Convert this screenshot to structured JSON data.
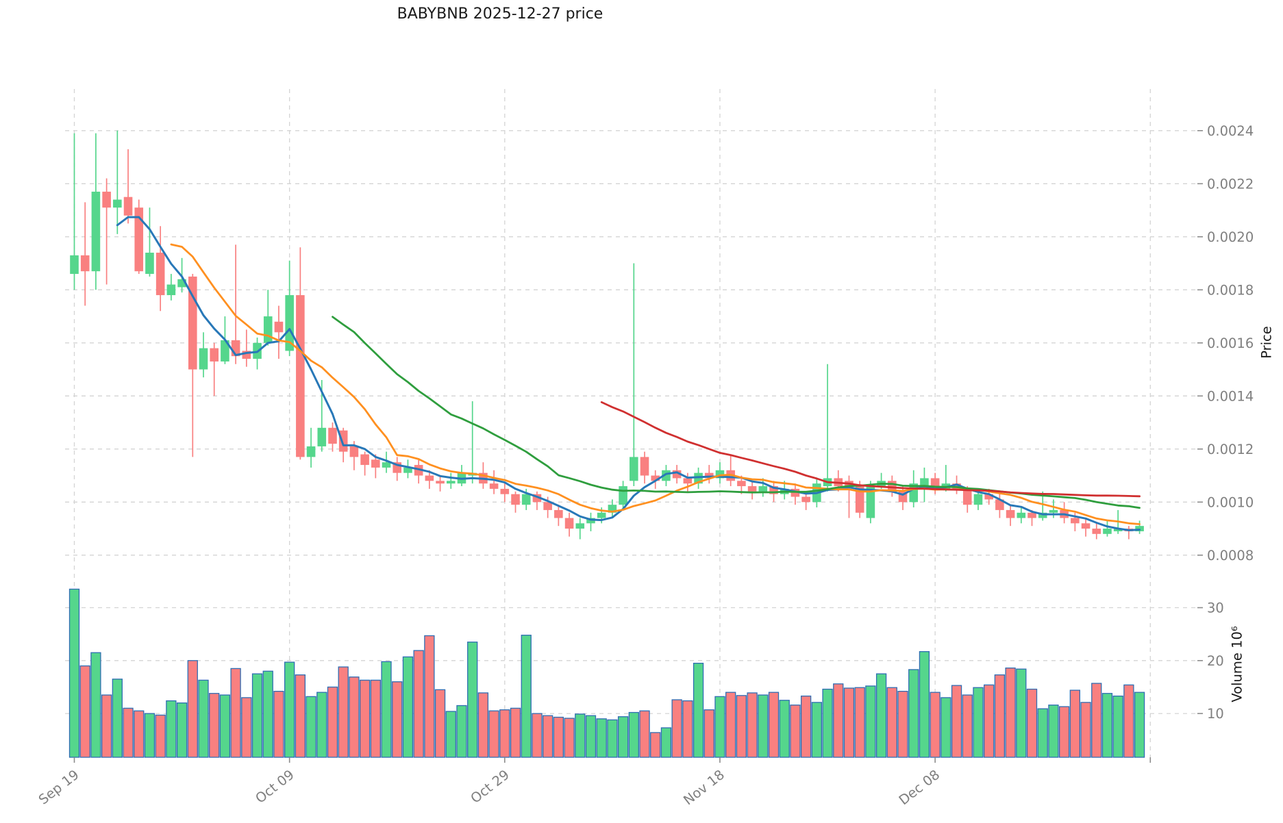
{
  "title": "BABYBNB  2025-12-27  price",
  "chart_data": {
    "type": "candlestick",
    "symbol": "BABYBNB",
    "as_of_date": "2025-12-27",
    "grid": true,
    "legend_position": "none",
    "price_axis": {
      "label": "Price",
      "side": "right",
      "ticks": [
        0.0008,
        0.001,
        0.0012,
        0.0014,
        0.0016,
        0.0018,
        0.002,
        0.0022,
        0.0024
      ],
      "range": [
        0.00077,
        0.00256
      ]
    },
    "volume_axis": {
      "label": "Volume  10⁶",
      "side": "right",
      "unit_multiplier": "10⁶",
      "ticks": [
        10,
        20,
        30
      ],
      "range": [
        1.7,
        36.1
      ]
    },
    "x_axis": {
      "tick_labels": [
        "Sep 19",
        "Oct 09",
        "Oct 29",
        "Nov 18",
        "Dec 08"
      ],
      "tick_day_indices": [
        0,
        20,
        40,
        60,
        80
      ],
      "grid_day_indices": [
        0,
        20,
        40,
        60,
        80,
        100
      ],
      "label_rotation_deg": 38
    },
    "dates": [
      "09-19",
      "09-20",
      "09-21",
      "09-22",
      "09-23",
      "09-24",
      "09-25",
      "09-26",
      "09-27",
      "09-28",
      "09-29",
      "09-30",
      "10-01",
      "10-02",
      "10-03",
      "10-04",
      "10-05",
      "10-06",
      "10-07",
      "10-08",
      "10-09",
      "10-10",
      "10-11",
      "10-12",
      "10-13",
      "10-14",
      "10-15",
      "10-16",
      "10-17",
      "10-18",
      "10-19",
      "10-20",
      "10-21",
      "10-22",
      "10-23",
      "10-24",
      "10-25",
      "10-26",
      "10-27",
      "10-28",
      "10-29",
      "10-30",
      "10-31",
      "11-01",
      "11-02",
      "11-03",
      "11-04",
      "11-05",
      "11-06",
      "11-07",
      "11-08",
      "11-09",
      "11-10",
      "11-11",
      "11-12",
      "11-13",
      "11-14",
      "11-15",
      "11-16",
      "11-17",
      "11-18",
      "11-19",
      "11-20",
      "11-21",
      "11-22",
      "11-23",
      "11-24",
      "11-25",
      "11-26",
      "11-27",
      "11-28",
      "11-29",
      "11-30",
      "12-01",
      "12-02",
      "12-03",
      "12-04",
      "12-05",
      "12-06",
      "12-07",
      "12-08",
      "12-09",
      "12-10",
      "12-11",
      "12-12",
      "12-13",
      "12-14",
      "12-15",
      "12-16",
      "12-17",
      "12-18",
      "12-19",
      "12-20",
      "12-21",
      "12-22",
      "12-23",
      "12-24",
      "12-25",
      "12-26",
      "12-27"
    ],
    "open": [
      0.00186,
      0.00193,
      0.00187,
      0.00217,
      0.00211,
      0.00215,
      0.00211,
      0.00186,
      0.00194,
      0.00178,
      0.00181,
      0.00185,
      0.0015,
      0.00158,
      0.00153,
      0.00161,
      0.00157,
      0.00154,
      0.0016,
      0.00168,
      0.00157,
      0.00178,
      0.00117,
      0.00121,
      0.00128,
      0.00127,
      0.00121,
      0.00118,
      0.00116,
      0.00113,
      0.00115,
      0.00111,
      0.00114,
      0.0011,
      0.00108,
      0.00107,
      0.00107,
      0.0011,
      0.00111,
      0.00107,
      0.00105,
      0.00103,
      0.00099,
      0.00103,
      0.001,
      0.00097,
      0.00094,
      0.0009,
      0.00092,
      0.00094,
      0.00096,
      0.00099,
      0.00108,
      0.00117,
      0.0011,
      0.00108,
      0.00112,
      0.00109,
      0.00107,
      0.00111,
      0.00109,
      0.00112,
      0.00108,
      0.00106,
      0.00104,
      0.00106,
      0.00103,
      0.00105,
      0.00102,
      0.001,
      0.00106,
      0.00109,
      0.00108,
      0.00106,
      0.00094,
      0.00106,
      0.00108,
      0.00104,
      0.001,
      0.00105,
      0.00109,
      0.00105,
      0.00107,
      0.00105,
      0.00099,
      0.00103,
      0.00101,
      0.00097,
      0.00094,
      0.00096,
      0.00094,
      0.00096,
      0.00097,
      0.00094,
      0.00092,
      0.0009,
      0.00088,
      0.00089,
      0.0009,
      0.00089
    ],
    "high": [
      0.00239,
      0.00213,
      0.00239,
      0.00222,
      0.0024,
      0.00233,
      0.00214,
      0.00211,
      0.00204,
      0.00186,
      0.00192,
      0.00186,
      0.00164,
      0.0016,
      0.0017,
      0.00197,
      0.00165,
      0.00162,
      0.0018,
      0.00174,
      0.00191,
      0.00196,
      0.00128,
      0.00146,
      0.0013,
      0.00128,
      0.00123,
      0.00119,
      0.00118,
      0.00119,
      0.00117,
      0.00116,
      0.00116,
      0.00112,
      0.0011,
      0.00111,
      0.00114,
      0.00138,
      0.00115,
      0.00112,
      0.00107,
      0.00104,
      0.00105,
      0.00104,
      0.00102,
      0.00099,
      0.00096,
      0.00094,
      0.00096,
      0.00098,
      0.00101,
      0.00108,
      0.0019,
      0.00119,
      0.00112,
      0.00114,
      0.00114,
      0.00111,
      0.00113,
      0.00114,
      0.00115,
      0.00118,
      0.0011,
      0.00108,
      0.00109,
      0.00108,
      0.00108,
      0.00107,
      0.00104,
      0.00109,
      0.00152,
      0.00112,
      0.0011,
      0.00108,
      0.00108,
      0.00111,
      0.0011,
      0.00106,
      0.00112,
      0.00113,
      0.00111,
      0.00114,
      0.0011,
      0.00106,
      0.00105,
      0.00105,
      0.00103,
      0.00099,
      0.00098,
      0.00097,
      0.00104,
      0.00101,
      0.001,
      0.00096,
      0.00094,
      0.00092,
      0.00093,
      0.00097,
      0.00091,
      0.00093
    ],
    "low": [
      0.0018,
      0.00174,
      0.0018,
      0.00182,
      0.00201,
      0.00205,
      0.00186,
      0.00185,
      0.00172,
      0.00176,
      0.00179,
      0.00117,
      0.00147,
      0.0014,
      0.00152,
      0.00152,
      0.00151,
      0.0015,
      0.00159,
      0.00154,
      0.00155,
      0.00116,
      0.00113,
      0.00119,
      0.00119,
      0.00115,
      0.00112,
      0.0011,
      0.00109,
      0.00111,
      0.00108,
      0.00109,
      0.00107,
      0.00105,
      0.00104,
      0.00105,
      0.00106,
      0.00107,
      0.00105,
      0.00103,
      0.001,
      0.00096,
      0.00097,
      0.00097,
      0.00094,
      0.00091,
      0.00087,
      0.00086,
      0.00089,
      0.00092,
      0.00094,
      0.00097,
      0.00106,
      0.00107,
      0.00105,
      0.00106,
      0.00107,
      0.00104,
      0.00105,
      0.00107,
      0.00107,
      0.00106,
      0.00103,
      0.00101,
      0.00102,
      0.001,
      0.00101,
      0.00099,
      0.00097,
      0.00098,
      0.00104,
      0.00104,
      0.00094,
      0.00094,
      0.00092,
      0.00105,
      0.00102,
      0.00097,
      0.00098,
      0.001,
      0.00103,
      0.00104,
      0.00103,
      0.00096,
      0.00097,
      0.00099,
      0.00094,
      0.00091,
      0.00092,
      0.00091,
      0.00093,
      0.00094,
      0.00092,
      0.00089,
      0.00087,
      0.00086,
      0.00087,
      0.00088,
      0.00086,
      0.00088
    ],
    "close": [
      0.00193,
      0.00187,
      0.00217,
      0.00211,
      0.00214,
      0.00208,
      0.00187,
      0.00194,
      0.00178,
      0.00182,
      0.00184,
      0.0015,
      0.00158,
      0.00153,
      0.00161,
      0.00155,
      0.00154,
      0.0016,
      0.0017,
      0.00164,
      0.00178,
      0.00117,
      0.00121,
      0.00128,
      0.00122,
      0.00119,
      0.00117,
      0.00114,
      0.00113,
      0.00115,
      0.00111,
      0.00113,
      0.0011,
      0.00108,
      0.00107,
      0.00108,
      0.00111,
      0.00111,
      0.00107,
      0.00105,
      0.00103,
      0.00099,
      0.00103,
      0.001,
      0.00097,
      0.00094,
      0.0009,
      0.00092,
      0.00094,
      0.00096,
      0.00099,
      0.00106,
      0.00117,
      0.0011,
      0.00108,
      0.00112,
      0.00109,
      0.00107,
      0.00111,
      0.00109,
      0.00112,
      0.00108,
      0.00106,
      0.00104,
      0.00106,
      0.00103,
      0.00105,
      0.00102,
      0.001,
      0.00107,
      0.00109,
      0.00106,
      0.00106,
      0.00096,
      0.00106,
      0.00108,
      0.00104,
      0.001,
      0.00107,
      0.00109,
      0.00105,
      0.00107,
      0.00105,
      0.00099,
      0.00103,
      0.00101,
      0.00097,
      0.00094,
      0.00096,
      0.00094,
      0.00096,
      0.00097,
      0.00094,
      0.00092,
      0.0009,
      0.00088,
      0.0009,
      0.0009,
      0.00089,
      0.00091
    ],
    "volume_millions": [
      33.5,
      19,
      21.5,
      13.5,
      16.5,
      11,
      10.5,
      10,
      9.7,
      12.4,
      12,
      20,
      16.3,
      13.8,
      13.5,
      18.5,
      13,
      17.5,
      18,
      14.2,
      19.7,
      17.3,
      13.2,
      14,
      15,
      18.8,
      16.9,
      16.3,
      16.3,
      19.8,
      16,
      20.7,
      21.9,
      24.7,
      14.5,
      10.4,
      11.5,
      23.5,
      13.9,
      10.5,
      10.7,
      11,
      24.8,
      10,
      9.6,
      9.3,
      9.1,
      9.9,
      9.6,
      9,
      8.8,
      9.4,
      10.2,
      10.5,
      6.4,
      7.3,
      12.6,
      12.4,
      19.5,
      10.7,
      13.2,
      14,
      13.4,
      13.9,
      13.5,
      14,
      12.5,
      11.6,
      13.3,
      12.1,
      14.6,
      15.6,
      14.8,
      14.9,
      15.2,
      17.5,
      14.9,
      14.2,
      18.3,
      21.7,
      14,
      13,
      15.3,
      13.5,
      14.9,
      15.4,
      17.3,
      18.6,
      18.4,
      14.6,
      10.9,
      11.6,
      11.3,
      14.4,
      12.1,
      15.7,
      13.8,
      13.3,
      15.4,
      14
    ],
    "moving_averages": [
      {
        "name": "mav5",
        "window": 5,
        "color": "#2878b8"
      },
      {
        "name": "mav10",
        "window": 10,
        "color": "#ff9020"
      },
      {
        "name": "mav25",
        "window": 25,
        "color": "#2f9e3e"
      },
      {
        "name": "mav50",
        "window": 50,
        "color": "#d03030"
      }
    ],
    "colors": {
      "up": "#55d68c",
      "down": "#f98080",
      "volume_bar_edge": "#2f6db3",
      "gridline": "#d4d4d4",
      "tick_text": "#7f7f7f",
      "tick_mark": "#8c8c8c",
      "title_text": "#1a1a1a"
    }
  }
}
